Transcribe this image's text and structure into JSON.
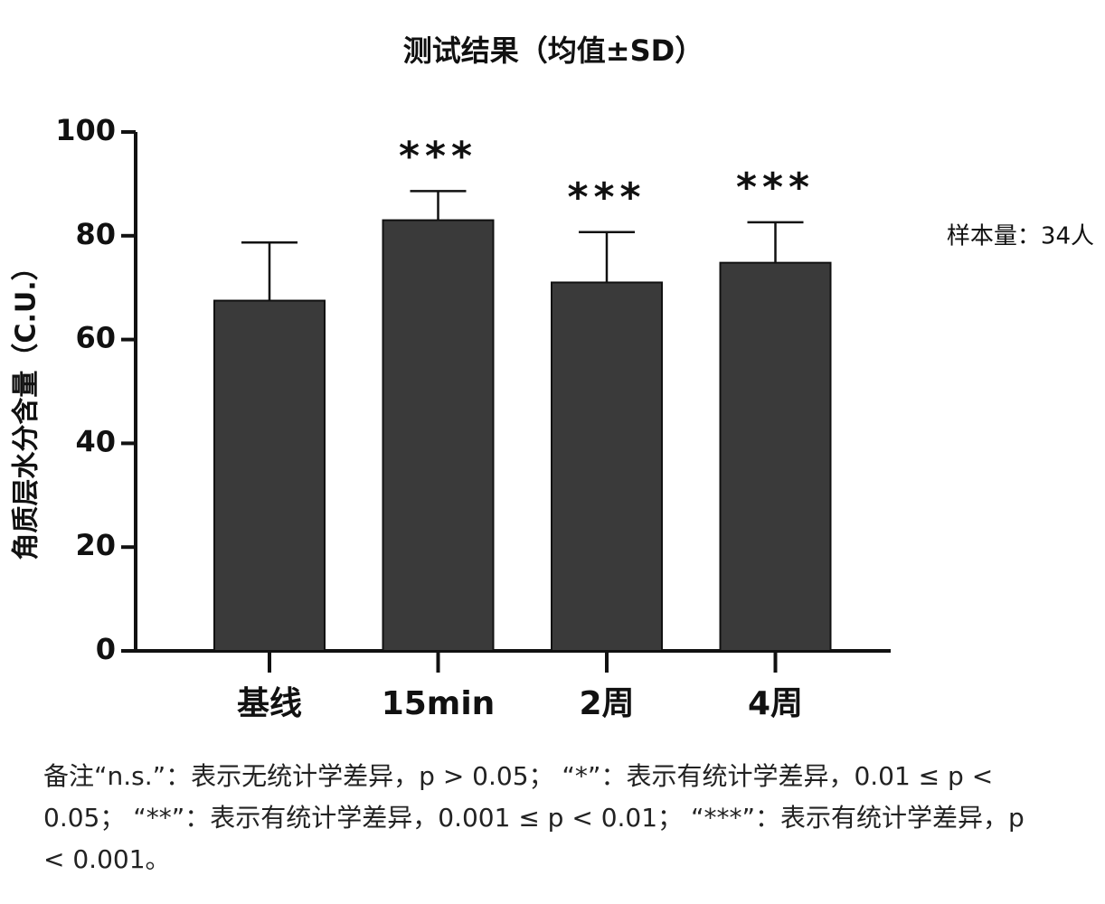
{
  "chart_data": {
    "type": "bar",
    "title": "测试结果（均值±SD）",
    "y_label": "角质层水分含量（C.U.）",
    "categories": [
      "基线",
      "15min",
      "2周",
      "4周"
    ],
    "values": [
      67.5,
      83,
      71,
      74.8
    ],
    "errors": [
      11.2,
      5.6,
      9.7,
      7.8
    ],
    "significance": [
      null,
      "***",
      "***",
      "***"
    ],
    "color": "#3a3a3a",
    "ylim": [
      0,
      100
    ],
    "yticks": [
      0,
      20,
      40,
      60,
      80,
      100
    ],
    "grid": false,
    "sample_size": "样本量：34人",
    "note": "备注“n.s.”：表示无统计学差异，p > 0.05； “*”：表示有统计学差异，0.01 ≤ p < 0.05； “**”：表示有统计学差异，0.001 ≤ p < 0.01； “***”：表示有统计学差异，p < 0.001。"
  }
}
